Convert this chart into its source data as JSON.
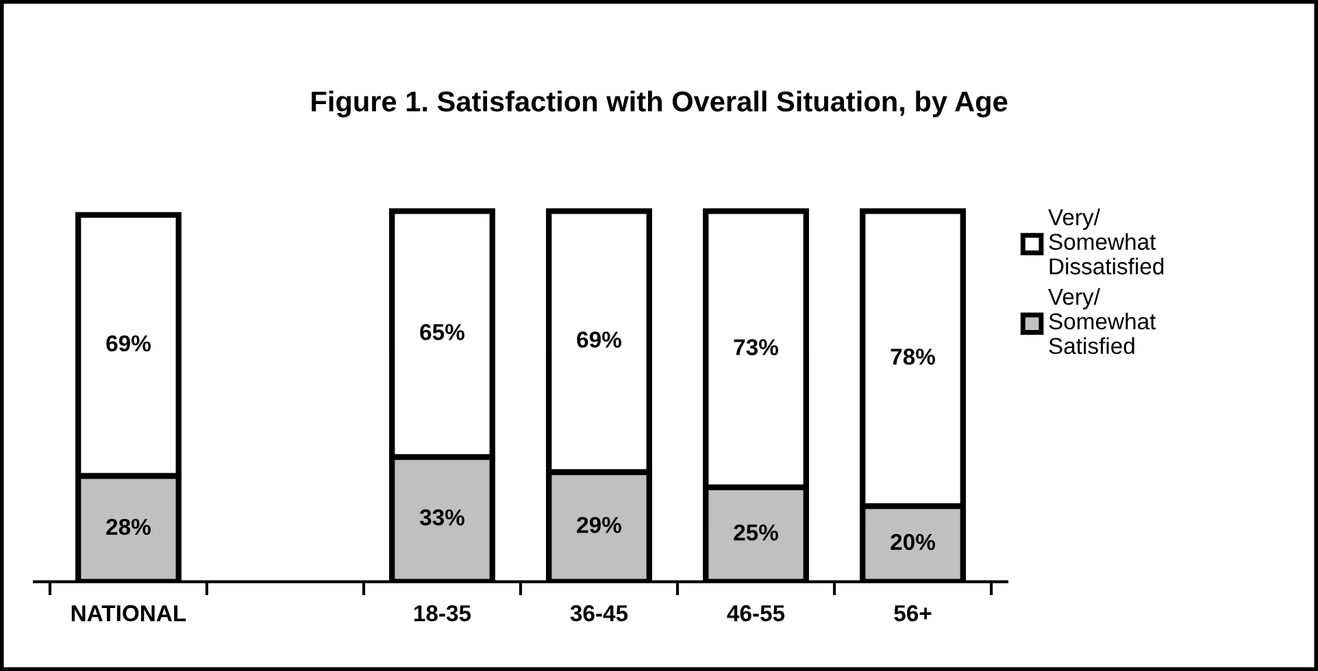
{
  "chart_data": {
    "type": "bar",
    "title": "Figure 1. Satisfaction with Overall Situation, by Age",
    "stacked": true,
    "legend": "right",
    "categories": [
      "NATIONAL",
      null,
      "18-35",
      "36-45",
      "46-55",
      "56+"
    ],
    "series": [
      {
        "name": "Very/\nSomewhat\nSatisfied",
        "color": "#c0c0c0",
        "values": [
          28,
          null,
          33,
          29,
          25,
          20
        ],
        "value_labels": [
          "28%",
          null,
          "33%",
          "29%",
          "25%",
          "20%"
        ]
      },
      {
        "name": "Very/\nSomewhat\nDissatisfied",
        "color": "#ffffff",
        "values": [
          69,
          null,
          65,
          69,
          73,
          78
        ],
        "value_labels": [
          "69%",
          null,
          "65%",
          "69%",
          "73%",
          "78%"
        ]
      }
    ]
  }
}
